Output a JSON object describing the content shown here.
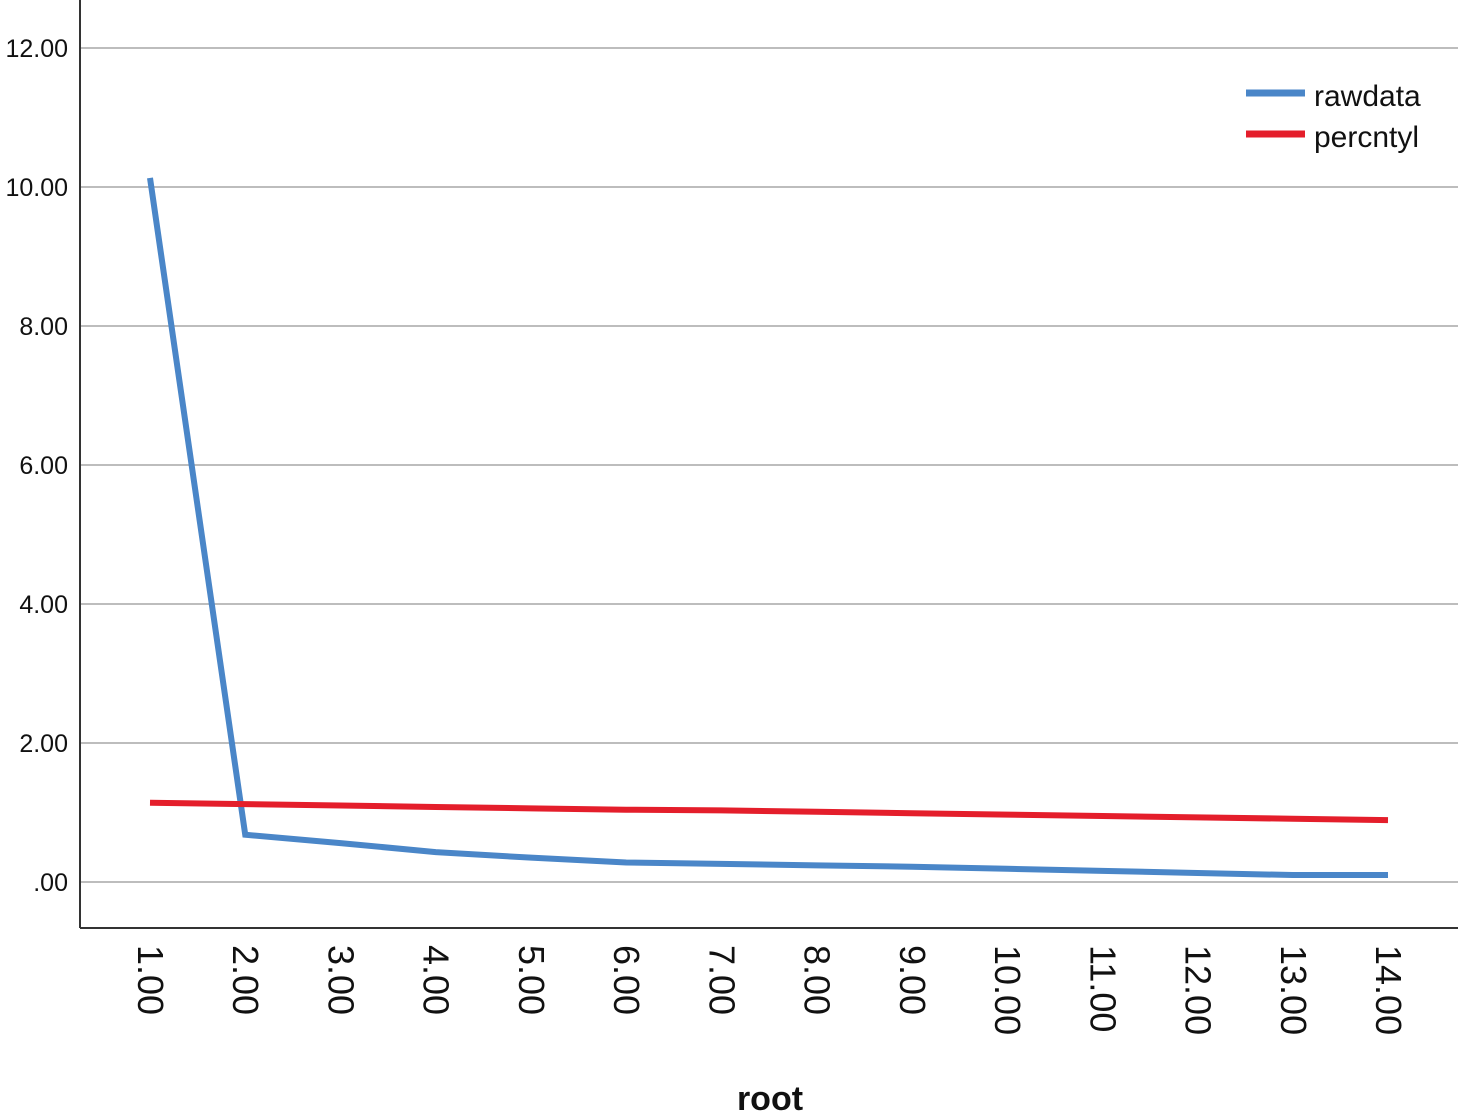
{
  "chart_data": {
    "type": "line",
    "title": "",
    "xlabel": "root",
    "ylabel": "",
    "x": [
      1,
      2,
      3,
      4,
      5,
      6,
      7,
      8,
      9,
      10,
      11,
      12,
      13,
      14
    ],
    "x_tick_labels": [
      "1.00",
      "2.00",
      "3.00",
      "4.00",
      "5.00",
      "6.00",
      "7.00",
      "8.00",
      "9.00",
      "10.00",
      "11.00",
      "12.00",
      "13.00",
      "14.00"
    ],
    "y_ticks": [
      0,
      2,
      4,
      6,
      8,
      10,
      12
    ],
    "y_tick_labels": [
      ".00",
      "2.00",
      "4.00",
      "6.00",
      "8.00",
      "10.00",
      "12.00"
    ],
    "ylim": [
      -0.65,
      12.6
    ],
    "grid": "horizontal",
    "legend_position": "top-right",
    "series": [
      {
        "name": "rawdata",
        "color": "#4a86c8",
        "values": [
          10.13,
          0.68,
          0.56,
          0.43,
          0.35,
          0.28,
          0.26,
          0.24,
          0.22,
          0.19,
          0.16,
          0.13,
          0.1,
          0.1
        ]
      },
      {
        "name": "percntyl",
        "color": "#e41e2b",
        "values": [
          1.14,
          1.12,
          1.1,
          1.08,
          1.06,
          1.04,
          1.03,
          1.01,
          0.99,
          0.97,
          0.95,
          0.93,
          0.91,
          0.89
        ]
      }
    ]
  }
}
